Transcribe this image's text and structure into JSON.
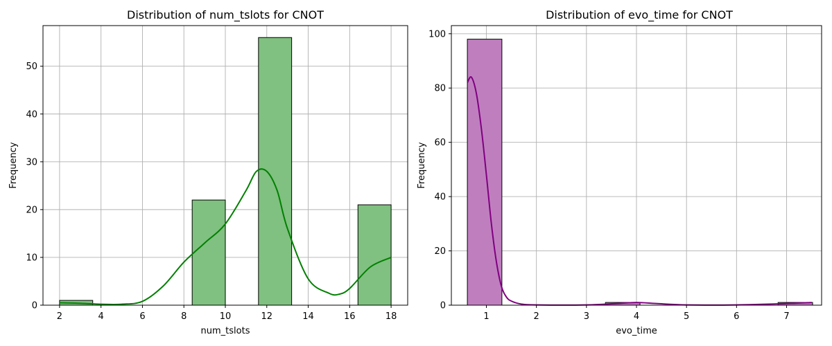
{
  "chart_data": [
    {
      "type": "bar",
      "title": "Distribution of num_tslots for CNOT",
      "xlabel": "num_tslots",
      "ylabel": "Frequency",
      "xlim": [
        1.2,
        18.8
      ],
      "ylim": [
        0,
        58.5
      ],
      "xticks": [
        2,
        4,
        6,
        8,
        10,
        12,
        14,
        16,
        18
      ],
      "yticks": [
        0,
        10,
        20,
        30,
        40,
        50
      ],
      "grid": true,
      "bins": [
        {
          "x0": 2.0,
          "x1": 3.6,
          "count": 1
        },
        {
          "x0": 3.6,
          "x1": 5.2,
          "count": 0
        },
        {
          "x0": 5.2,
          "x1": 6.8,
          "count": 0
        },
        {
          "x0": 6.8,
          "x1": 8.4,
          "count": 0
        },
        {
          "x0": 8.4,
          "x1": 10.0,
          "count": 22
        },
        {
          "x0": 10.0,
          "x1": 11.6,
          "count": 0
        },
        {
          "x0": 11.6,
          "x1": 13.2,
          "count": 56
        },
        {
          "x0": 13.2,
          "x1": 14.8,
          "count": 0
        },
        {
          "x0": 14.8,
          "x1": 16.4,
          "count": 0
        },
        {
          "x0": 16.4,
          "x1": 18.0,
          "count": 21
        }
      ],
      "kde": {
        "x": [
          2,
          3,
          4,
          5,
          6,
          7,
          8,
          9,
          10,
          11,
          11.5,
          12,
          12.5,
          13,
          14,
          15,
          15.5,
          16,
          17,
          18
        ],
        "y": [
          0.5,
          0.4,
          0.2,
          0.2,
          0.8,
          4.0,
          9.0,
          13.0,
          17.0,
          24.0,
          28.0,
          28.0,
          24.0,
          16.0,
          5.5,
          2.5,
          2.3,
          3.5,
          8.0,
          10.0
        ]
      },
      "bar_color": "#80c080",
      "edge_color": "#000000",
      "line_color": "#008000"
    },
    {
      "type": "bar",
      "title": "Distribution of evo_time for CNOT",
      "xlabel": "evo_time",
      "ylabel": "Frequency",
      "xlim": [
        0.3,
        7.7
      ],
      "ylim": [
        0,
        103
      ],
      "xticks": [
        1,
        2,
        3,
        4,
        5,
        6,
        7
      ],
      "yticks": [
        0,
        20,
        40,
        60,
        80,
        100
      ],
      "grid": true,
      "bins": [
        {
          "x0": 0.62,
          "x1": 1.31,
          "count": 98
        },
        {
          "x0": 1.31,
          "x1": 2.0,
          "count": 0
        },
        {
          "x0": 2.0,
          "x1": 2.69,
          "count": 0
        },
        {
          "x0": 2.69,
          "x1": 3.38,
          "count": 0
        },
        {
          "x0": 3.38,
          "x1": 4.07,
          "count": 1
        },
        {
          "x0": 4.07,
          "x1": 4.76,
          "count": 0
        },
        {
          "x0": 4.76,
          "x1": 5.45,
          "count": 0
        },
        {
          "x0": 5.45,
          "x1": 6.14,
          "count": 0
        },
        {
          "x0": 6.14,
          "x1": 6.83,
          "count": 0
        },
        {
          "x0": 6.83,
          "x1": 7.52,
          "count": 1
        }
      ],
      "kde": {
        "x": [
          0.62,
          0.7,
          0.8,
          0.9,
          1.0,
          1.1,
          1.2,
          1.3,
          1.4,
          1.5,
          1.7,
          2.0,
          3.0,
          3.6,
          4.0,
          4.4,
          5.0,
          6.0,
          7.0,
          7.5
        ],
        "y": [
          82,
          84,
          78,
          65,
          48,
          30,
          16,
          7,
          3,
          1.5,
          0.4,
          0.1,
          0.1,
          0.6,
          1.0,
          0.6,
          0.1,
          0.1,
          0.6,
          1.0
        ]
      },
      "bar_color": "#bf7fbf",
      "edge_color": "#000000",
      "line_color": "#800080"
    }
  ]
}
